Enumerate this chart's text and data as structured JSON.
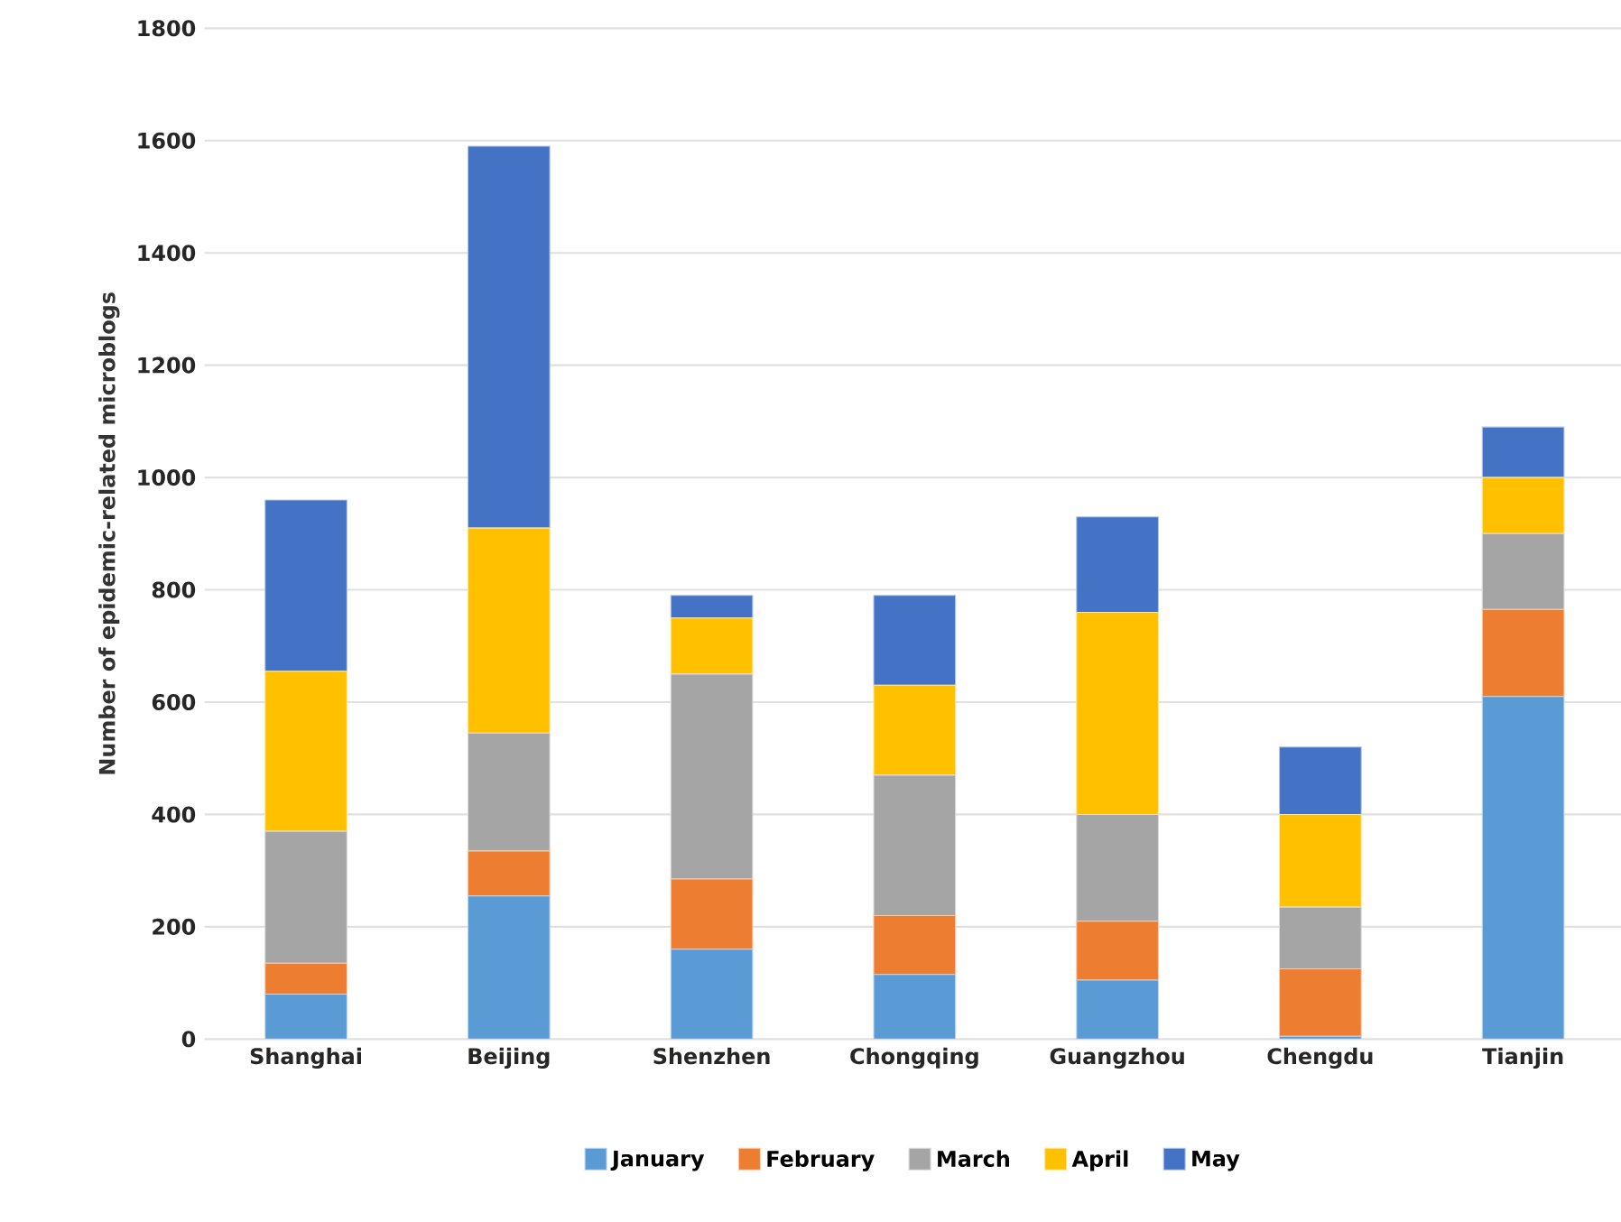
{
  "chart_data": {
    "type": "bar",
    "stacked": true,
    "ylabel": "Number of epidemic-related microblogs",
    "categories": [
      "Shanghai",
      "Beijing",
      "Shenzhen",
      "Chongqing",
      "Guangzhou",
      "Chengdu",
      "Tianjin"
    ],
    "series": [
      {
        "name": "January",
        "color": "#5b9bd5",
        "values": [
          80,
          255,
          160,
          115,
          105,
          5,
          610
        ]
      },
      {
        "name": "February",
        "color": "#ed7d31",
        "values": [
          55,
          80,
          125,
          105,
          105,
          120,
          155
        ]
      },
      {
        "name": "March",
        "color": "#a5a5a5",
        "values": [
          235,
          210,
          365,
          250,
          190,
          110,
          135
        ]
      },
      {
        "name": "April",
        "color": "#ffc000",
        "values": [
          285,
          365,
          100,
          160,
          360,
          165,
          100
        ]
      },
      {
        "name": "May",
        "color": "#4472c4",
        "values": [
          305,
          680,
          40,
          160,
          170,
          120,
          90
        ]
      }
    ],
    "ylim": [
      0,
      1800
    ],
    "yticks": [
      0,
      200,
      400,
      600,
      800,
      1000,
      1200,
      1400,
      1600,
      1800
    ],
    "grid": "y",
    "legend": "bottom"
  }
}
